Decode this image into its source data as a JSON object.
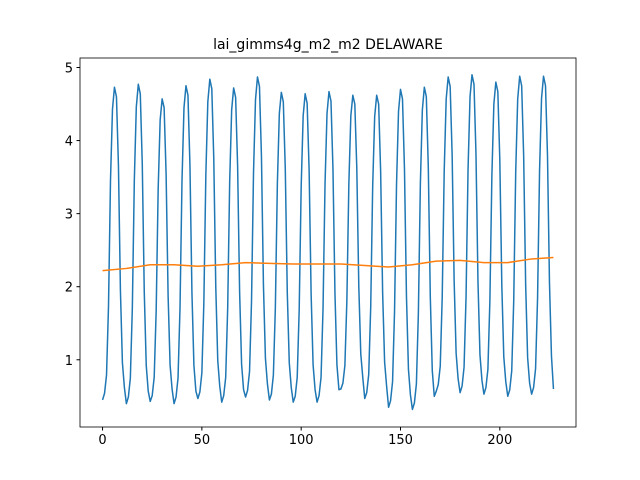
{
  "chart_data": {
    "type": "line",
    "title": "lai_gimms4g_m2_m2 DELAWARE",
    "xlim": [
      -11.35,
      238.35
    ],
    "xticks": [
      0,
      50,
      100,
      150,
      200
    ],
    "ylim": [
      0.08,
      5.13
    ],
    "yticks": [
      1,
      2,
      3,
      4,
      5
    ],
    "series": [
      {
        "color": "#1f77b4",
        "values": [
          0.45,
          0.54,
          0.79,
          1.73,
          3.45,
          4.43,
          4.73,
          4.6,
          3.66,
          1.95,
          0.96,
          0.62,
          0.4,
          0.49,
          0.75,
          1.71,
          3.46,
          4.46,
          4.77,
          4.64,
          3.68,
          1.93,
          0.92,
          0.57,
          0.43,
          0.51,
          0.76,
          1.67,
          3.33,
          4.28,
          4.57,
          4.45,
          3.54,
          1.88,
          0.93,
          0.6,
          0.4,
          0.49,
          0.75,
          1.71,
          3.45,
          4.45,
          4.75,
          4.62,
          3.66,
          1.92,
          0.92,
          0.57,
          0.47,
          0.56,
          0.82,
          1.78,
          3.53,
          4.53,
          4.84,
          4.71,
          3.75,
          2.0,
          0.99,
          0.64,
          0.42,
          0.51,
          0.76,
          1.71,
          3.43,
          4.42,
          4.72,
          4.59,
          3.65,
          1.93,
          0.94,
          0.59,
          0.49,
          0.58,
          0.84,
          1.8,
          3.56,
          4.56,
          4.87,
          4.74,
          3.78,
          2.02,
          1.02,
          0.67,
          0.45,
          0.53,
          0.79,
          1.71,
          3.4,
          4.37,
          4.66,
          4.53,
          3.61,
          1.92,
          0.96,
          0.62,
          0.42,
          0.5,
          0.76,
          1.69,
          3.37,
          4.34,
          4.64,
          4.51,
          3.59,
          1.9,
          0.93,
          0.59,
          0.42,
          0.51,
          0.76,
          1.7,
          3.4,
          4.37,
          4.67,
          4.54,
          3.61,
          1.91,
          0.93,
          0.59,
          0.6,
          0.68,
          0.92,
          1.81,
          3.41,
          4.34,
          4.62,
          4.5,
          3.62,
          2.01,
          1.08,
          0.76,
          0.47,
          0.55,
          0.8,
          1.72,
          3.38,
          4.33,
          4.62,
          4.5,
          3.58,
          1.92,
          0.97,
          0.64,
          0.35,
          0.44,
          0.7,
          1.66,
          3.4,
          4.4,
          4.7,
          4.57,
          3.61,
          1.87,
          0.87,
          0.52,
          0.32,
          0.41,
          0.67,
          1.64,
          3.41,
          4.42,
          4.73,
          4.6,
          3.63,
          1.86,
          0.85,
          0.5,
          0.57,
          0.66,
          0.91,
          1.86,
          3.58,
          4.57,
          4.87,
          4.74,
          3.8,
          2.08,
          1.09,
          0.74,
          0.55,
          0.64,
          0.9,
          1.86,
          3.6,
          4.6,
          4.9,
          4.77,
          3.81,
          2.07,
          1.07,
          0.72,
          0.53,
          0.62,
          0.87,
          1.81,
          3.52,
          4.5,
          4.8,
          4.67,
          3.73,
          2.02,
          1.04,
          0.7,
          0.5,
          0.59,
          0.85,
          1.81,
          3.57,
          4.57,
          4.88,
          4.75,
          3.79,
          2.03,
          1.03,
          0.68,
          0.53,
          0.62,
          0.88,
          1.84,
          3.58,
          4.58,
          4.88,
          4.75,
          3.79,
          2.05,
          1.05,
          0.6
        ]
      },
      {
        "color": "#ff7f0e",
        "x": [
          0,
          12,
          24,
          36,
          48,
          60,
          72,
          84,
          96,
          108,
          120,
          132,
          144,
          156,
          168,
          180,
          192,
          204,
          216,
          227
        ],
        "values": [
          2.22,
          2.25,
          2.3,
          2.3,
          2.28,
          2.3,
          2.33,
          2.32,
          2.31,
          2.31,
          2.31,
          2.29,
          2.27,
          2.3,
          2.35,
          2.36,
          2.33,
          2.33,
          2.38,
          2.4
        ]
      }
    ]
  }
}
